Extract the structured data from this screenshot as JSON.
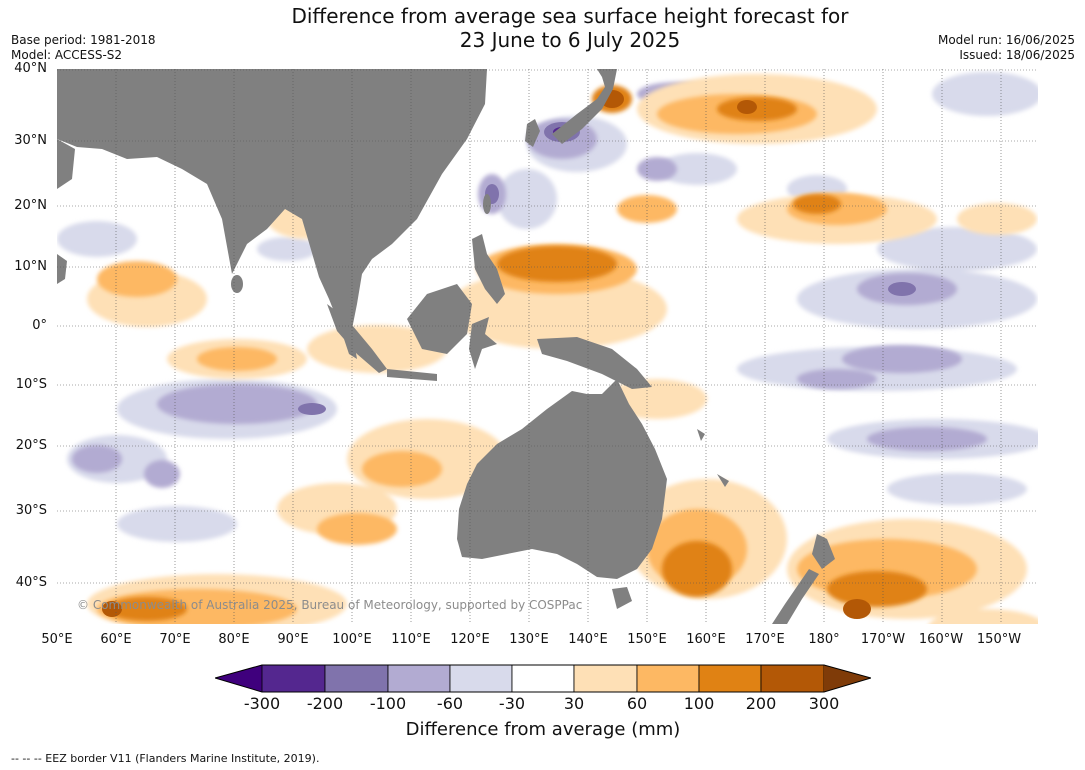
{
  "title_line1": "Difference from average sea surface height forecast for",
  "title_line2": "23 June to 6 July 2025",
  "base_period": "Base period: 1981-2018",
  "model": "Model: ACCESS-S2",
  "model_run": "Model run: 16/06/2025",
  "issued": "Issued: 18/06/2025",
  "lat_labels": [
    "40°N",
    "30°N",
    "20°N",
    "10°N",
    "0°",
    "10°S",
    "20°S",
    "30°S",
    "40°S"
  ],
  "lon_labels": [
    "50°E",
    "60°E",
    "70°E",
    "80°E",
    "90°E",
    "100°E",
    "110°E",
    "120°E",
    "130°E",
    "140°E",
    "150°E",
    "160°E",
    "170°E",
    "180°",
    "170°W",
    "160°W",
    "150°W"
  ],
  "copyright": "© Commonwealth of Australia 2025, Bureau of Meteorology, supported by COSPPac",
  "colorbar": {
    "title": "Difference from average (mm)",
    "tick_labels": [
      "-300",
      "-200",
      "-100",
      "-60",
      "-30",
      "30",
      "60",
      "100",
      "200",
      "300"
    ],
    "colors": [
      "#3f007d",
      "#54278f",
      "#8073ac",
      "#b2abd2",
      "#d8daeb",
      "#ffffff",
      "#fee0b6",
      "#fdb863",
      "#e08214",
      "#b35806",
      "#7f3b08"
    ]
  },
  "land_color": "#808080",
  "footnote": "--  --  -- EEZ border V11 (Flanders Marine Institute, 2019)."
}
